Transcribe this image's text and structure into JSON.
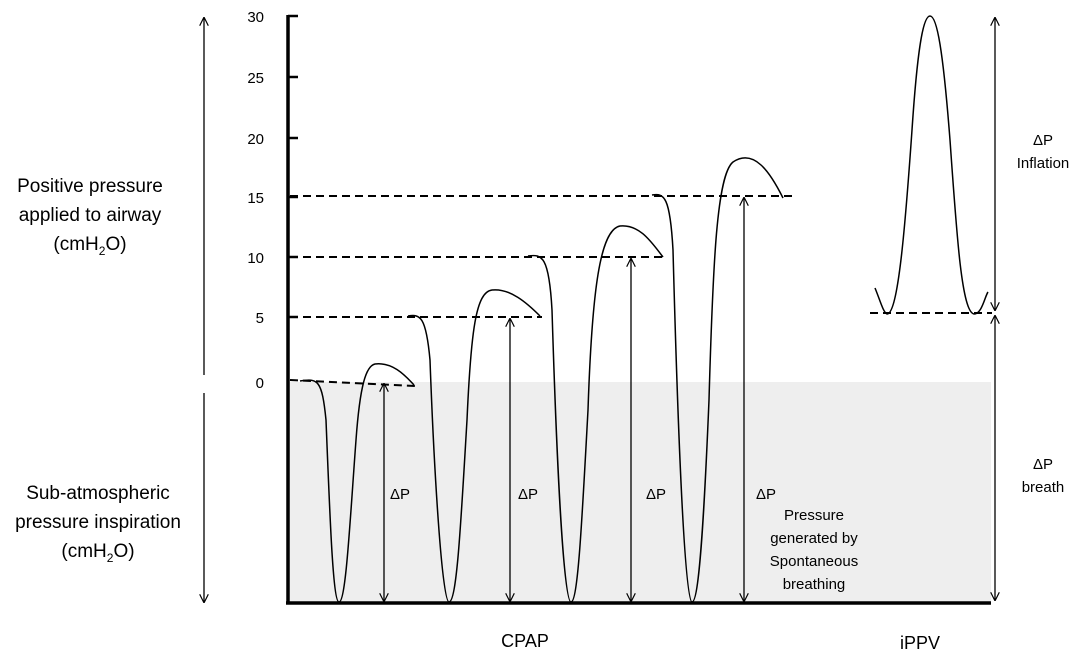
{
  "left_upper_label": {
    "line1": "Positive pressure",
    "line2": "applied to airway",
    "unit_prefix": "(cmH",
    "unit_sub": "2",
    "unit_suffix": "O)"
  },
  "left_lower_label": {
    "line1": "Sub-atmospheric",
    "line2": "pressure inspiration",
    "unit_prefix": "(cmH",
    "unit_sub": "2",
    "unit_suffix": "O)"
  },
  "y_ticks": [
    "30",
    "25",
    "20",
    "15",
    "10",
    "5",
    "0"
  ],
  "delta_p": "ΔP",
  "spontaneous_label": {
    "line1": "Pressure",
    "line2": "generated by",
    "line3": "Spontaneous",
    "line4": "breathing"
  },
  "right_upper_label": {
    "line1": "ΔP",
    "line2": "Inflation"
  },
  "right_lower_label": {
    "line1": "ΔP",
    "line2": "breath"
  },
  "bottom_labels": {
    "cpap": "CPAP",
    "ippv": "iPPV"
  },
  "colors": {
    "shade": "#eeeeee",
    "ink": "#000000"
  }
}
